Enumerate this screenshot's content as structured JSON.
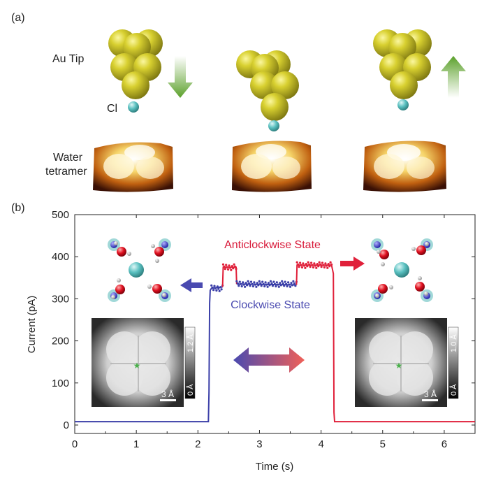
{
  "panel_a": {
    "label": "(a)",
    "tip_label": "Au Tip",
    "cl_label": "Cl",
    "water_label_line1": "Water",
    "water_label_line2": "tetramer"
  },
  "panel_b": {
    "label": "(b)",
    "state_anticlockwise": "Anticlockwise State",
    "state_clockwise": "Clockwise State",
    "left_inset": {
      "scale_top": "1.2 Å",
      "scale_bottom": "0 Å",
      "scalebar": "3 Å"
    },
    "right_inset": {
      "scale_top": "1.0 Å",
      "scale_bottom": "0 Å",
      "scalebar": "3 Å"
    }
  },
  "colors": {
    "blue_trace": "#3b3fa8",
    "red_trace": "#e0203a",
    "gold": "#c8c020",
    "chlorine": "#59c0c0"
  },
  "chart_data": {
    "type": "line",
    "xlabel": "Time (s)",
    "ylabel": "Current (pA)",
    "xlim": [
      0,
      6.5
    ],
    "ylim": [
      -20,
      500
    ],
    "xticks": [
      0,
      1,
      2,
      3,
      4,
      5,
      6
    ],
    "yticks": [
      0,
      100,
      200,
      300,
      400,
      500
    ],
    "series": [
      {
        "color": "#3b3fa8",
        "x": [
          0,
          2.17,
          2.18,
          2.19,
          2.2,
          2.22,
          2.4
        ],
        "y": [
          8,
          8,
          80,
          290,
          320,
          325,
          328
        ]
      },
      {
        "color": "#e0203a",
        "x": [
          2.4,
          2.41,
          2.62,
          2.63
        ],
        "y": [
          328,
          375,
          375,
          335
        ]
      },
      {
        "color": "#3b3fa8",
        "x": [
          2.63,
          3.6
        ],
        "y": [
          335,
          333
        ]
      },
      {
        "color": "#e0203a",
        "x": [
          3.6,
          3.61,
          4.17,
          4.2,
          4.21,
          4.22,
          6.5
        ],
        "y": [
          333,
          380,
          380,
          360,
          30,
          8,
          8
        ]
      }
    ]
  }
}
